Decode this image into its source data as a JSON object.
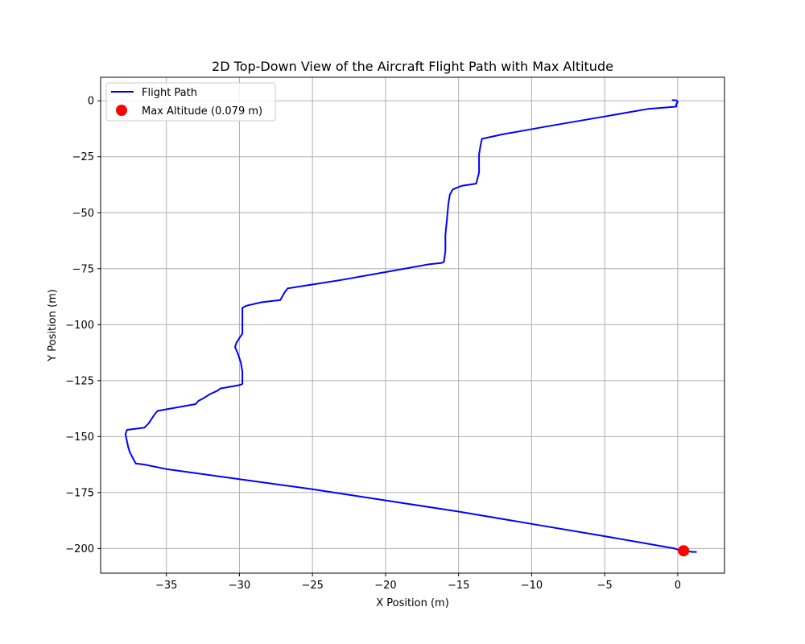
{
  "chart_data": {
    "type": "line",
    "title": "2D Top-Down View of the Aircraft Flight Path with Max Altitude",
    "xlabel": "X Position (m)",
    "ylabel": "Y Position (m)",
    "xlim": [
      -39.5,
      3.2
    ],
    "ylim": [
      -211,
      10.5
    ],
    "xticks": [
      -35,
      -30,
      -25,
      -20,
      -15,
      -10,
      -5,
      0
    ],
    "yticks": [
      0,
      -25,
      -50,
      -75,
      -100,
      -125,
      -150,
      -175,
      -200
    ],
    "xtick_labels": [
      "−35",
      "−30",
      "−25",
      "−20",
      "−15",
      "−10",
      "−5",
      "0"
    ],
    "ytick_labels": [
      "0",
      "−25",
      "−50",
      "−75",
      "−100",
      "−125",
      "−150",
      "−175",
      "−200"
    ],
    "grid": true,
    "legend_position": "top-left",
    "series": [
      {
        "name": "Flight Path",
        "color": "#0000ff",
        "type": "line",
        "x": [
          -0.4,
          -0.1,
          0.0,
          -0.1,
          -0.1,
          -0.1,
          -0.3,
          -2.0,
          -5.0,
          -9.0,
          -12.0,
          -13.4,
          -13.5,
          -13.6,
          -13.6,
          -13.6,
          -13.8,
          -14.8,
          -15.4,
          -15.6,
          -15.7,
          -15.8,
          -15.9,
          -15.9,
          -16.0,
          -16.2,
          -17.0,
          -20.0,
          -23.0,
          -26.7,
          -26.9,
          -27.2,
          -28.5,
          -29.5,
          -29.8,
          -29.8,
          -29.8,
          -29.8,
          -30.0,
          -30.2,
          -30.3,
          -30.1,
          -29.9,
          -29.8,
          -29.8,
          -30.0,
          -31.3,
          -31.5,
          -32.0,
          -32.5,
          -32.8,
          -33.0,
          -35.6,
          -35.8,
          -36.0,
          -36.2,
          -36.5,
          -37.7,
          -37.8,
          -37.7,
          -37.6,
          -37.5,
          -37.3,
          -37.1,
          -36.5,
          -35.0,
          -30.0,
          -25.0,
          -20.0,
          -15.0,
          -10.0,
          -5.0,
          -0.2,
          0.0,
          0.5,
          1.0,
          1.3
        ],
        "y": [
          0.3,
          0.2,
          -0.5,
          -1.5,
          -2.5,
          -2.6,
          -2.7,
          -3.6,
          -7.0,
          -11.5,
          -15.0,
          -17.0,
          -20.0,
          -24.0,
          -28.0,
          -32.0,
          -37.0,
          -38.0,
          -39.6,
          -42.0,
          -46.0,
          -53.0,
          -60.0,
          -67.0,
          -72.0,
          -72.5,
          -73.0,
          -76.5,
          -80.0,
          -83.8,
          -85.5,
          -89.0,
          -90.0,
          -91.5,
          -92.5,
          -95.0,
          -100.0,
          -104.0,
          -106.0,
          -108.0,
          -110.0,
          -113.0,
          -117.0,
          -121.0,
          -126.5,
          -127.0,
          -128.5,
          -129.5,
          -131.0,
          -133.0,
          -134.0,
          -135.5,
          -138.5,
          -140.0,
          -142.0,
          -144.0,
          -146.0,
          -147.0,
          -149.0,
          -152.0,
          -155.0,
          -157.0,
          -159.5,
          -162.0,
          -162.5,
          -164.5,
          -169.0,
          -173.5,
          -178.5,
          -183.5,
          -189.0,
          -194.5,
          -200.0,
          -200.5,
          -201.0,
          -201.5,
          -201.5
        ]
      },
      {
        "name": "Max Altitude (0.079 m)",
        "color": "#ff0000",
        "type": "scatter",
        "x": [
          0.4
        ],
        "y": [
          -201.0
        ]
      }
    ]
  }
}
